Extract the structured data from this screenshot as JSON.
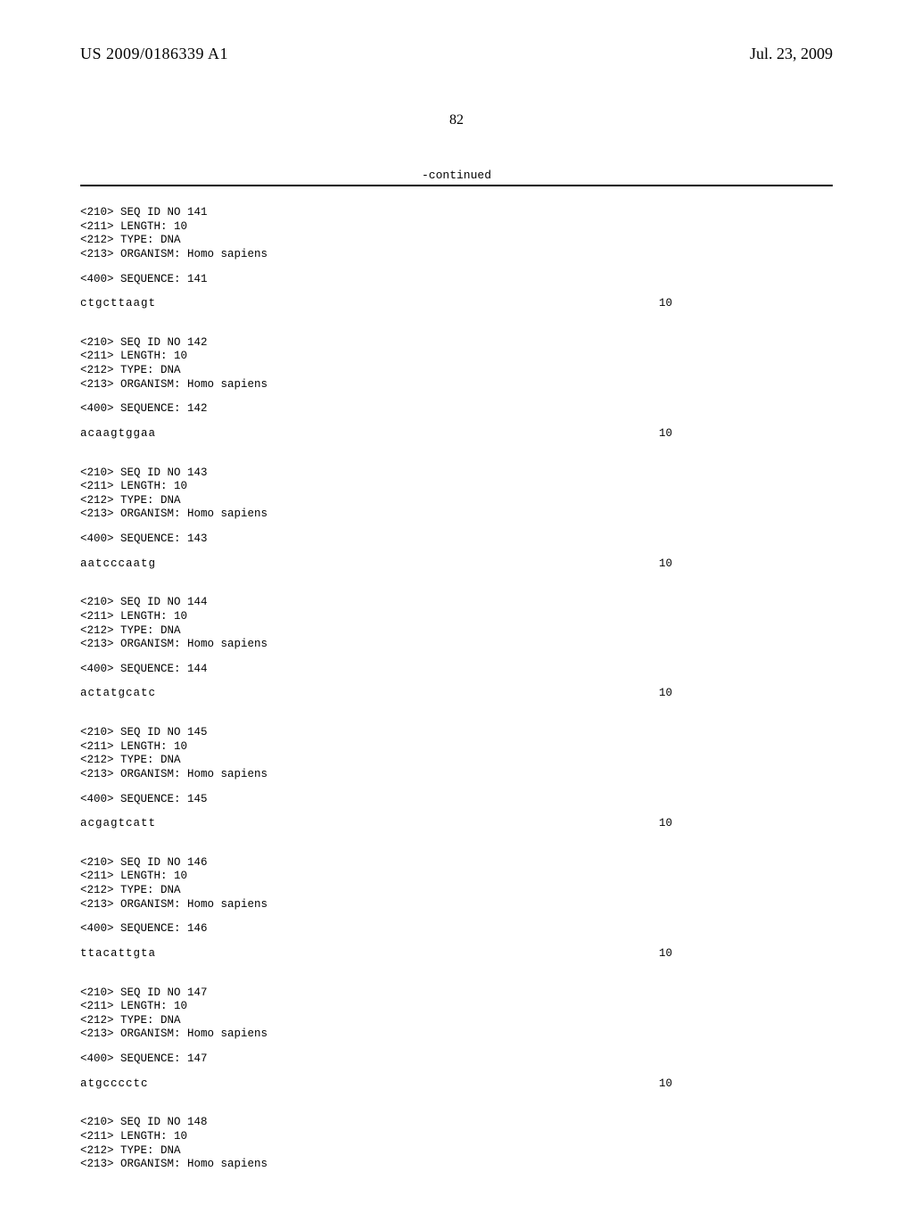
{
  "header": {
    "publication_number": "US 2009/0186339 A1",
    "publication_date": "Jul. 23, 2009"
  },
  "page_number": "82",
  "continued_label": "-continued",
  "sequences": [
    {
      "id": "141",
      "length": "10",
      "type": "DNA",
      "organism": "Homo sapiens",
      "sequence_label": "141",
      "sequence": "ctgcttaagt",
      "seq_len_annot": "10"
    },
    {
      "id": "142",
      "length": "10",
      "type": "DNA",
      "organism": "Homo sapiens",
      "sequence_label": "142",
      "sequence": "acaagtggaa",
      "seq_len_annot": "10"
    },
    {
      "id": "143",
      "length": "10",
      "type": "DNA",
      "organism": "Homo sapiens",
      "sequence_label": "143",
      "sequence": "aatcccaatg",
      "seq_len_annot": "10"
    },
    {
      "id": "144",
      "length": "10",
      "type": "DNA",
      "organism": "Homo sapiens",
      "sequence_label": "144",
      "sequence": "actatgcatc",
      "seq_len_annot": "10"
    },
    {
      "id": "145",
      "length": "10",
      "type": "DNA",
      "organism": "Homo sapiens",
      "sequence_label": "145",
      "sequence": "acgagtcatt",
      "seq_len_annot": "10"
    },
    {
      "id": "146",
      "length": "10",
      "type": "DNA",
      "organism": "Homo sapiens",
      "sequence_label": "146",
      "sequence": "ttacattgta",
      "seq_len_annot": "10"
    },
    {
      "id": "147",
      "length": "10",
      "type": "DNA",
      "organism": "Homo sapiens",
      "sequence_label": "147",
      "sequence": "atgcccctc",
      "seq_len_annot": "10"
    },
    {
      "id": "148",
      "length": "10",
      "type": "DNA",
      "organism": "Homo sapiens",
      "sequence_label": null,
      "sequence": null,
      "seq_len_annot": null
    }
  ],
  "labels": {
    "seq_id_prefix": "<210> SEQ ID NO ",
    "length_prefix": "<211> LENGTH: ",
    "type_prefix": "<212> TYPE: ",
    "organism_prefix": "<213> ORGANISM: ",
    "sequence_prefix": "<400> SEQUENCE: "
  }
}
